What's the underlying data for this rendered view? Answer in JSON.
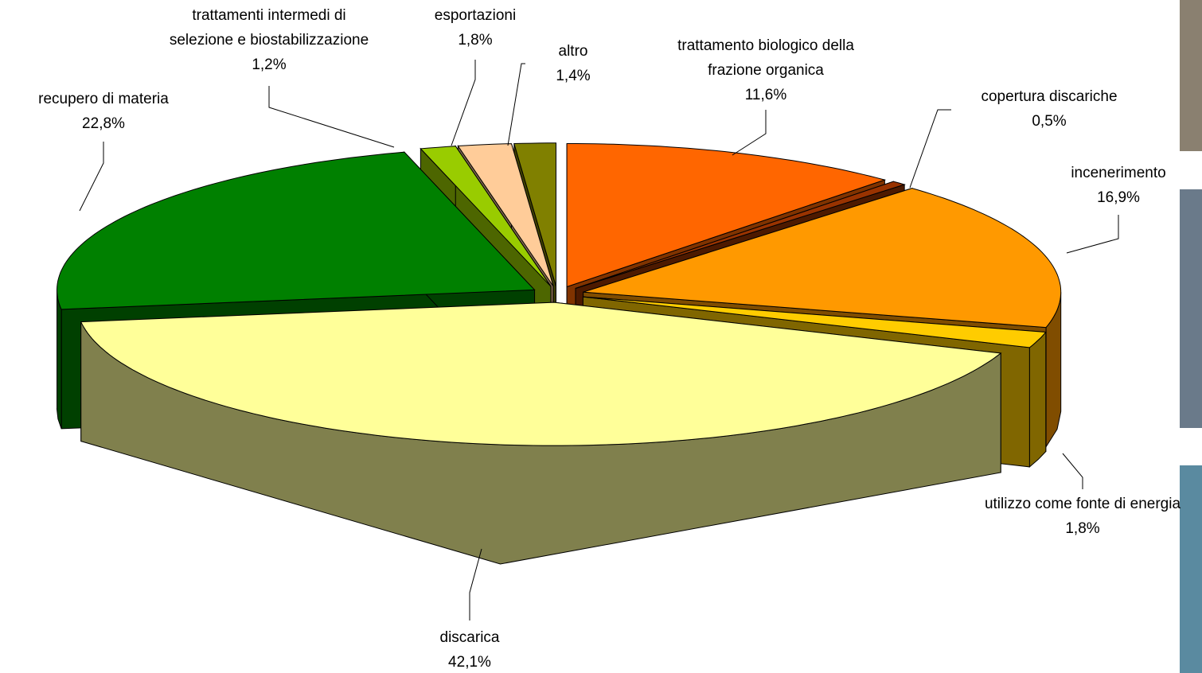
{
  "chart_data": {
    "type": "pie3d",
    "categories": [
      "trattamento biologico della\nfrazione organica",
      "copertura discariche",
      "incenerimento",
      "utilizzo come fonte di energia",
      "discarica",
      "recupero di materia",
      "trattamenti intermedi di\nselezione e biostabilizzazione",
      "esportazioni",
      "altro"
    ],
    "values": [
      11.6,
      0.5,
      16.9,
      1.8,
      42.1,
      22.8,
      1.2,
      1.8,
      1.4
    ],
    "value_labels": [
      "11,6%",
      "0,5%",
      "16,9%",
      "1,8%",
      "42,1%",
      "22,8%",
      "1,2%",
      "1,8%",
      "1,4%"
    ],
    "colors": [
      "#FF6600",
      "#993300",
      "#FF9900",
      "#FFCC00",
      "#FFFF99",
      "#008000",
      "#99CC00",
      "#FFCC99",
      "#808000"
    ]
  }
}
